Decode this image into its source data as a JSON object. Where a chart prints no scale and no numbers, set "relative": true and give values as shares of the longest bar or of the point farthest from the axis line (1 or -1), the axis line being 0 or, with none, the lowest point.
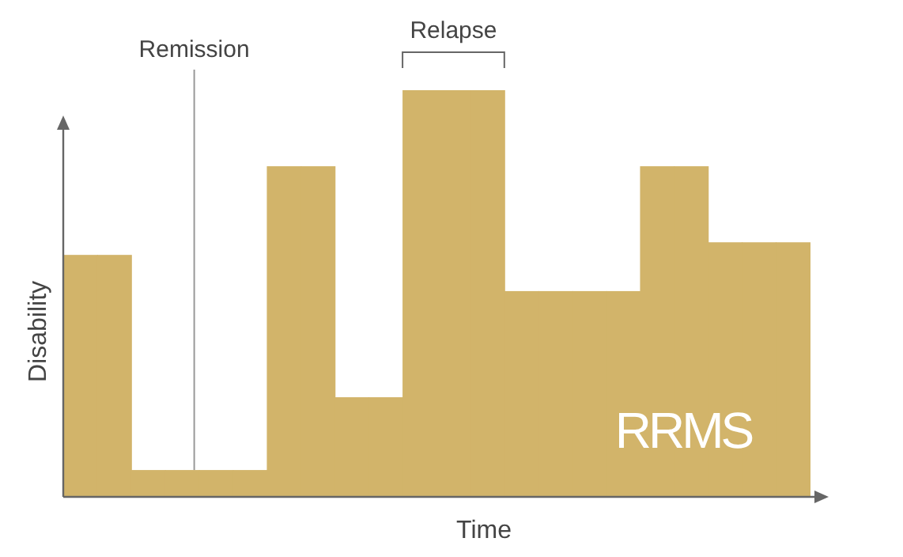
{
  "chart_data": {
    "type": "bar",
    "relative": true,
    "xlabel": "Time",
    "ylabel": "Disability",
    "categories": [
      null,
      null,
      null,
      null,
      null,
      null,
      null,
      null,
      null,
      null,
      null,
      null,
      null,
      null,
      null,
      null,
      null,
      null,
      null,
      null,
      null,
      null
    ],
    "series": [
      {
        "color": "#d2b46a",
        "values": [
          0.595,
          0.595,
          0.066,
          0.066,
          0.066,
          0.066,
          0.813,
          0.813,
          0.245,
          0.245,
          1,
          1,
          1,
          0.506,
          0.506,
          0.506,
          0.506,
          0.813,
          0.813,
          0.626,
          0.626,
          0.626
        ]
      }
    ],
    "annotations": [
      "Remission",
      "Relapse",
      "RRMS"
    ]
  }
}
